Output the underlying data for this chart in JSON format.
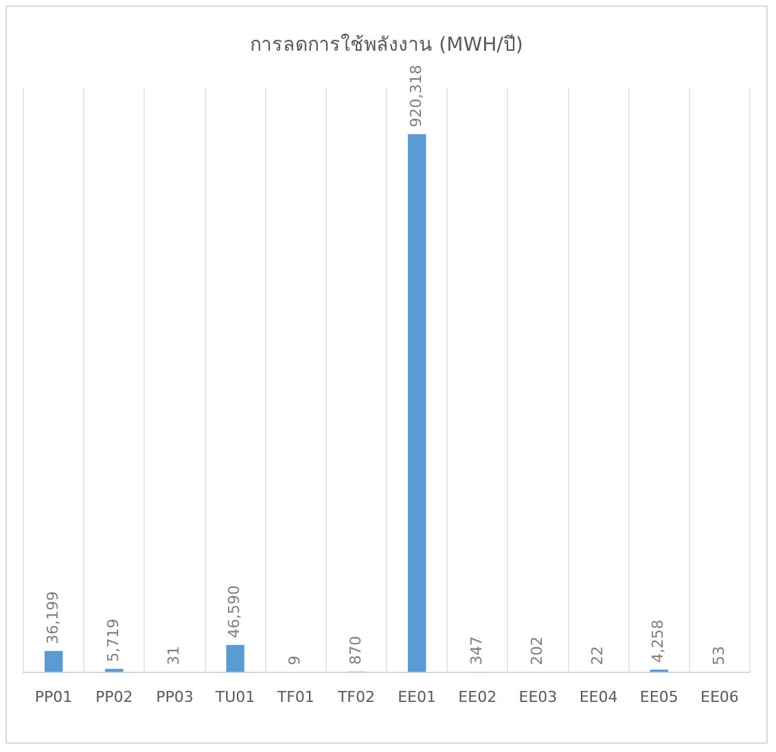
{
  "chart_data": {
    "type": "bar",
    "title": "การลดการใช้พลังงาน (MWH/ปี)",
    "categories": [
      "PP01",
      "PP02",
      "PP03",
      "TU01",
      "TF01",
      "TF02",
      "EE01",
      "EE02",
      "EE03",
      "EE04",
      "EE05",
      "EE06"
    ],
    "values": [
      36199,
      5719,
      31,
      46590,
      9,
      870,
      920318,
      347,
      202,
      22,
      4258,
      53
    ],
    "value_labels": [
      "36,199",
      "5,719",
      "31",
      "46,590",
      "9",
      "870",
      "920,318",
      "347",
      "202",
      "22",
      "4,258",
      "53"
    ],
    "color": "#5b9bd5",
    "grid": "x",
    "legend": false
  }
}
